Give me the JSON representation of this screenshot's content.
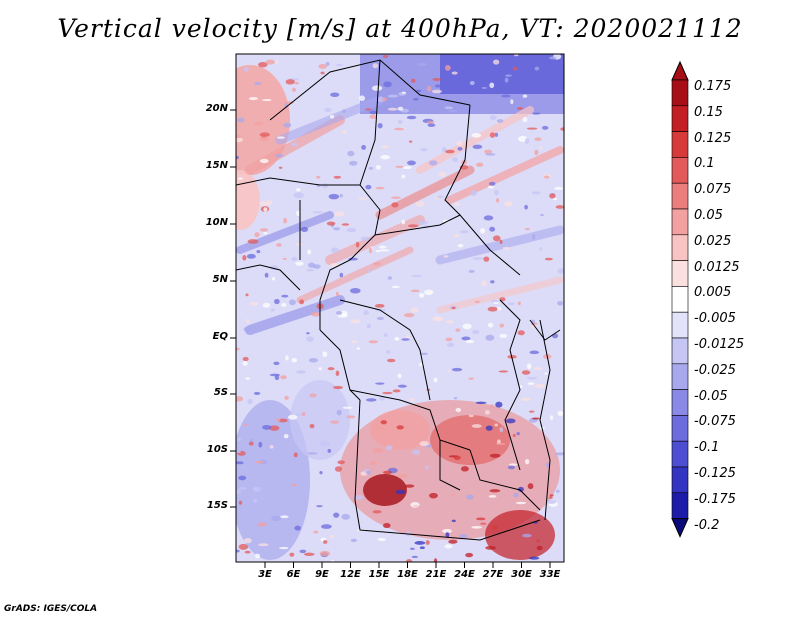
{
  "title": "Vertical velocity [m/s] at 400hPa, VT: 2020021112",
  "credit": "GrADS: IGES/COLA",
  "map": {
    "lat_labels": [
      "20N",
      "15N",
      "10N",
      "5N",
      "EQ",
      "5S",
      "10S",
      "15S"
    ],
    "lon_labels": [
      "3E",
      "6E",
      "9E",
      "12E",
      "15E",
      "18E",
      "21E",
      "24E",
      "27E",
      "30E",
      "33E"
    ]
  },
  "colorbar": {
    "levels": [
      "0.175",
      "0.15",
      "0.125",
      "0.1",
      "0.075",
      "0.05",
      "0.025",
      "0.0125",
      "0.005",
      "-0.005",
      "-0.0125",
      "-0.025",
      "-0.05",
      "-0.075",
      "-0.1",
      "-0.125",
      "-0.175",
      "-0.2"
    ],
    "colors": [
      "#a50f15",
      "#c21e24",
      "#d63a3a",
      "#e35a5a",
      "#ec7d7d",
      "#f3a0a0",
      "#f8c3c3",
      "#fbe0e0",
      "#ffffff",
      "#e2e2fb",
      "#c6c6f5",
      "#a8a8ee",
      "#8a8ae6",
      "#6c6cdd",
      "#4e4ed2",
      "#3434c2",
      "#1c1ca8",
      "#0a0a7a"
    ]
  }
}
